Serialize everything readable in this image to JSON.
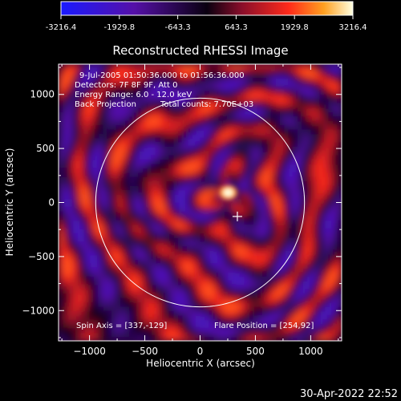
{
  "colorbar": {
    "tick_labels": [
      "-3216.4",
      "-1929.8",
      "-643.3",
      "643.3",
      "1929.8",
      "3216.4"
    ],
    "min": -3216.4,
    "max": 3216.4
  },
  "footer": {
    "timestamp": "30-Apr-2022 22:52"
  },
  "chart_data": {
    "type": "heatmap",
    "title": "Reconstructed RHESSI Image",
    "xlabel": "Heliocentric X (arcsec)",
    "ylabel": "Heliocentric Y (arcsec)",
    "xlim": [
      -1280,
      1280
    ],
    "ylim": [
      -1280,
      1280
    ],
    "x_ticks": [
      -1000,
      -500,
      0,
      500,
      1000
    ],
    "y_ticks": [
      -1000,
      -500,
      0,
      500,
      1000
    ],
    "x_tick_labels": [
      "−1000",
      "−500",
      "0",
      "500",
      "1000"
    ],
    "y_tick_labels": [
      "−1000",
      "−500",
      "0",
      "500",
      "1000"
    ],
    "annotations": [
      "9-Jul-2005 01:50:36.000 to 01:56:36.000",
      "Detectors: 7F 8F 9F, Att 0",
      "Energy Range: 6.0 - 12.0 keV",
      "Back Projection",
      "Total counts: 7.70E+03"
    ],
    "spin_axis_text": "Spin Axis = [337,-129]",
    "flare_position_text": "Flare Position = [254,92]",
    "solar_limb": {
      "center": [
        0,
        0
      ],
      "radius_arcsec": 944
    },
    "marker": {
      "x": 337,
      "y": -129
    },
    "peak_source": {
      "x": 254,
      "y": 92,
      "intensity": 3216.4
    },
    "grid": false
  }
}
